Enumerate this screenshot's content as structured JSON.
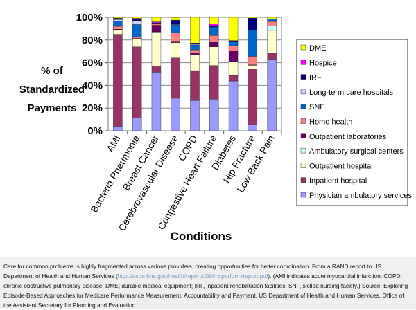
{
  "chart_data": {
    "type": "bar",
    "stacked": true,
    "title": "",
    "xlabel": "Conditions",
    "ylabel": "% of Standardized Payments",
    "ylim": [
      0,
      100
    ],
    "yticks": [
      "0%",
      "20%",
      "40%",
      "60%",
      "80%",
      "100%"
    ],
    "grid": true,
    "legend_placement": "right",
    "categories": [
      "AMI",
      "Bacteria Pneumonia",
      "Breast Cancer",
      "Cerebrovascular Disease",
      "COPD",
      "Congestive Heart Failure",
      "Diabetes",
      "Hip Fracture",
      "Low Back Pain"
    ],
    "series": [
      {
        "name": "Physician ambulatory  services",
        "color": "#9999FF",
        "values": [
          4,
          11.3,
          51.6,
          28.7,
          26.7,
          27.9,
          43.9,
          5.1,
          62.8
        ]
      },
      {
        "name": "Inpatient hospital",
        "color": "#993366",
        "values": [
          81,
          62.6,
          5.5,
          35.5,
          26.3,
          29.6,
          4.7,
          49.4,
          5.8
        ]
      },
      {
        "name": "Outpatient  hospital",
        "color": "#FFFFCC",
        "values": [
          4,
          7,
          29.7,
          13.5,
          13.6,
          16.4,
          12.1,
          3.2,
          19.9
        ]
      },
      {
        "name": "Ambulatory surgical centers",
        "color": "#CCFFFF",
        "values": [
          0,
          0,
          0.5,
          0,
          0,
          0,
          0,
          0,
          4
        ]
      },
      {
        "name": "Outpatient laboratories",
        "color": "#660066",
        "values": [
          0.5,
          0.5,
          5.7,
          1.2,
          1.6,
          4.4,
          9.5,
          0.4,
          0
        ]
      },
      {
        "name": "Home health",
        "color": "#FF8080",
        "values": [
          2.5,
          1.4,
          1,
          7.5,
          3.1,
          5.7,
          4.7,
          7.5,
          3.7
        ]
      },
      {
        "name": "SNF",
        "color": "#0066CC",
        "values": [
          4.5,
          10.8,
          0.6,
          7.1,
          4.4,
          7.5,
          3.8,
          23.3,
          2.2
        ]
      },
      {
        "name": "Long-term care hospitals",
        "color": "#CCCCFF",
        "values": [
          1.5,
          3.5,
          0,
          0.4,
          0.8,
          0,
          0,
          0,
          0
        ]
      },
      {
        "name": "IRF",
        "color": "#000080",
        "values": [
          1,
          1,
          0.5,
          3.6,
          0.8,
          1.2,
          0.8,
          10.5,
          0
        ]
      },
      {
        "name": "Hospice",
        "color": "#FF00FF",
        "values": [
          0.3,
          1,
          0.9,
          0,
          0,
          1.6,
          0,
          0,
          0
        ]
      },
      {
        "name": "DME",
        "color": "#FFFF00",
        "values": [
          0.7,
          1.2,
          4,
          2.4,
          22.7,
          5.7,
          20.5,
          1,
          1.6
        ]
      }
    ]
  },
  "caption": {
    "text_before": "Care for common problems is highly fragmented across various providers, creating opportunities for better coordination. From a RAND report to US Department of Health and Human Services (",
    "link": "http://aspe.hhs.gov/health/reports/09/mcperform/report.pdf",
    "text_after": "). (AMI indicates acute myocardial infarction; COPD; chronic obstructive pulmonary disease; DME; durable medical equipment; IRF, inpatient rehabilitation facilities; SNF, skilled nursing facility.) Source: Exploring Episode-Based Approaches for Medicare Performance Measurement, Accountability and Payment. US Department of Health and Human Services, Office of the Assistant Secretary for Planning and Evaluation."
  }
}
